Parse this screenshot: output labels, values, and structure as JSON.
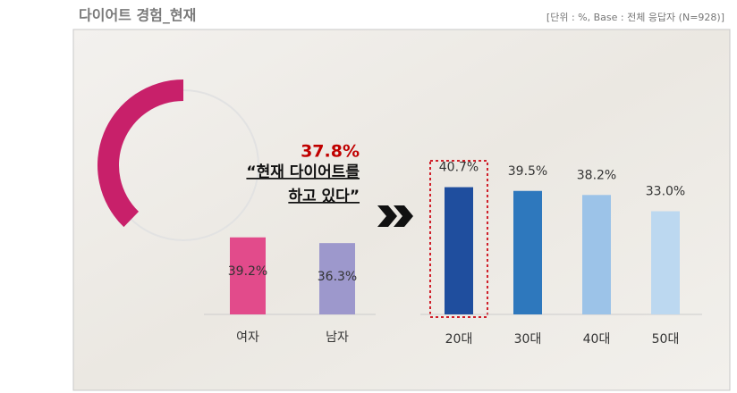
{
  "header": {
    "title": "다이어트 경험_현재",
    "note": "[단위 : %, Base : 전체 응답자 (N=928)]"
  },
  "chart_data": [
    {
      "type": "donut",
      "values": [
        37.8
      ],
      "value_labels": [
        "37.8%"
      ],
      "color": "#c8206a",
      "caption": [
        "“현재 다이어트를",
        "하고 있다”"
      ]
    },
    {
      "type": "bar",
      "categories": [
        "여자",
        "남자"
      ],
      "values": [
        39.2,
        36.3
      ],
      "value_labels": [
        "39.2%",
        "36.3%"
      ],
      "colors": [
        "#e24b8b",
        "#9d98cc"
      ]
    },
    {
      "type": "bar",
      "categories": [
        "20대",
        "30대",
        "40대",
        "50대"
      ],
      "values": [
        40.7,
        39.5,
        38.2,
        33.0
      ],
      "value_labels": [
        "40.7%",
        "39.5%",
        "38.2%",
        "33.0%"
      ],
      "colors": [
        "#1f4e9e",
        "#2e78bd",
        "#9cc3e8",
        "#bcd8f0"
      ]
    }
  ]
}
